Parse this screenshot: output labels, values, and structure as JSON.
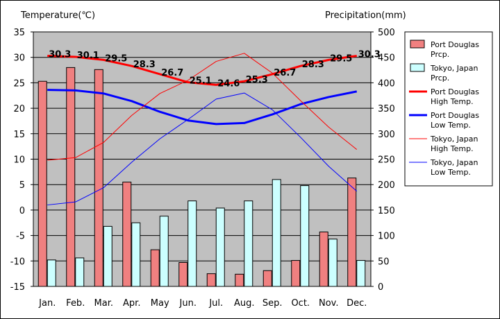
{
  "chart_data": {
    "type": "bar",
    "title": "",
    "ylabel_left": "Temperature(℃)",
    "ylabel_right": "Precipitation(mm)",
    "y_left_lim": [
      -15,
      35
    ],
    "y_left_ticks": [
      -15,
      -10,
      -5,
      0,
      5,
      10,
      15,
      20,
      25,
      30,
      35
    ],
    "y_right_lim": [
      0,
      500
    ],
    "y_right_ticks": [
      0,
      50,
      100,
      150,
      200,
      250,
      300,
      350,
      400,
      450,
      500
    ],
    "grid": true,
    "legend_position": "right",
    "categories": [
      "Jan.",
      "Feb.",
      "Mar.",
      "Apr.",
      "May",
      "Jun.",
      "Jul.",
      "Aug.",
      "Sep.",
      "Oct.",
      "Nov.",
      "Dec."
    ],
    "series": [
      {
        "name": "Port Douglas\nPrcp.",
        "kind": "bar",
        "axis": "right",
        "color": "#f08080",
        "values": [
          403,
          430,
          426,
          205,
          72,
          47,
          25,
          24,
          31,
          51,
          107,
          213
        ]
      },
      {
        "name": "Tokyo, Japan\nPrcp.",
        "kind": "bar",
        "axis": "right",
        "color": "#ccffff",
        "values": [
          52,
          56,
          118,
          125,
          138,
          168,
          154,
          168,
          210,
          198,
          93,
          51
        ]
      },
      {
        "name": "Port Douglas\nHigh Temp.",
        "kind": "line",
        "axis": "left",
        "color": "#ff0000",
        "width": 3,
        "labels": true,
        "values": [
          30.3,
          30.1,
          29.5,
          28.3,
          26.7,
          25.1,
          24.6,
          25.3,
          26.7,
          28.3,
          29.5,
          30.3
        ]
      },
      {
        "name": "Port Douglas\nLow Temp.",
        "kind": "line",
        "axis": "left",
        "color": "#0000ff",
        "width": 3,
        "values": [
          23.6,
          23.5,
          22.9,
          21.4,
          19.3,
          17.6,
          16.9,
          17.1,
          18.8,
          20.8,
          22.2,
          23.3
        ]
      },
      {
        "name": "Tokyo, Japan\nHigh Temp.",
        "kind": "line",
        "axis": "left",
        "color": "#ff0000",
        "width": 1,
        "values": [
          9.8,
          10.3,
          13.3,
          18.6,
          22.9,
          25.5,
          29.2,
          30.8,
          26.9,
          21.5,
          16.3,
          11.9
        ]
      },
      {
        "name": "Tokyo, Japan\nLow Temp.",
        "kind": "line",
        "axis": "left",
        "color": "#0000ff",
        "width": 1,
        "values": [
          1.0,
          1.6,
          4.4,
          9.4,
          14.0,
          17.8,
          21.8,
          23.0,
          19.7,
          14.3,
          8.6,
          3.7
        ]
      }
    ]
  }
}
